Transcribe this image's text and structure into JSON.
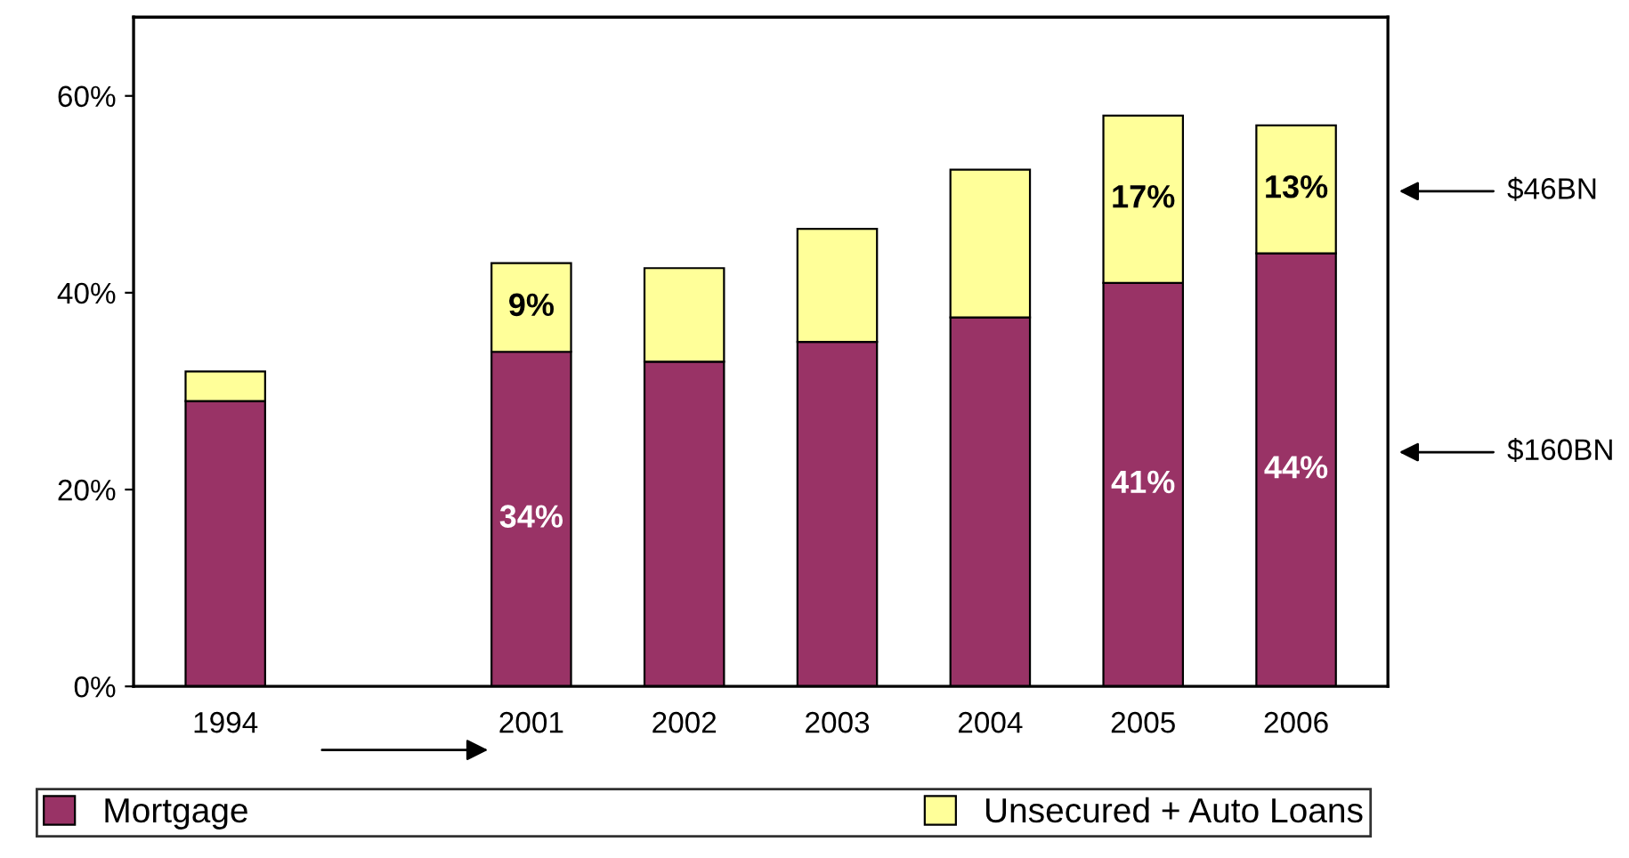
{
  "chart_data": {
    "type": "bar",
    "stacked": true,
    "categories": [
      "1994",
      null,
      "2001",
      "2002",
      "2003",
      "2004",
      "2005",
      "2006"
    ],
    "series": [
      {
        "name": "Mortgage",
        "color": "#993366",
        "values": [
          29,
          null,
          34,
          33,
          35,
          37.5,
          41,
          44
        ],
        "value_labels": [
          null,
          null,
          "34%",
          null,
          null,
          null,
          "41%",
          "44%"
        ]
      },
      {
        "name": "Unsecured + Auto Loans",
        "color": "#ffff99",
        "values": [
          3,
          null,
          9,
          9.5,
          11.5,
          15,
          17,
          13
        ],
        "value_labels": [
          null,
          null,
          "9%",
          null,
          null,
          null,
          "17%",
          "13%"
        ]
      }
    ],
    "ylim": [
      0,
      68
    ],
    "yticks": [
      {
        "value": 0,
        "label": "0%"
      },
      {
        "value": 20,
        "label": "20%"
      },
      {
        "value": 40,
        "label": "40%"
      },
      {
        "value": 60,
        "label": "60%"
      }
    ],
    "annotations": [
      "$46BN",
      "$160BN"
    ],
    "grid": false,
    "legend": "bottom"
  }
}
